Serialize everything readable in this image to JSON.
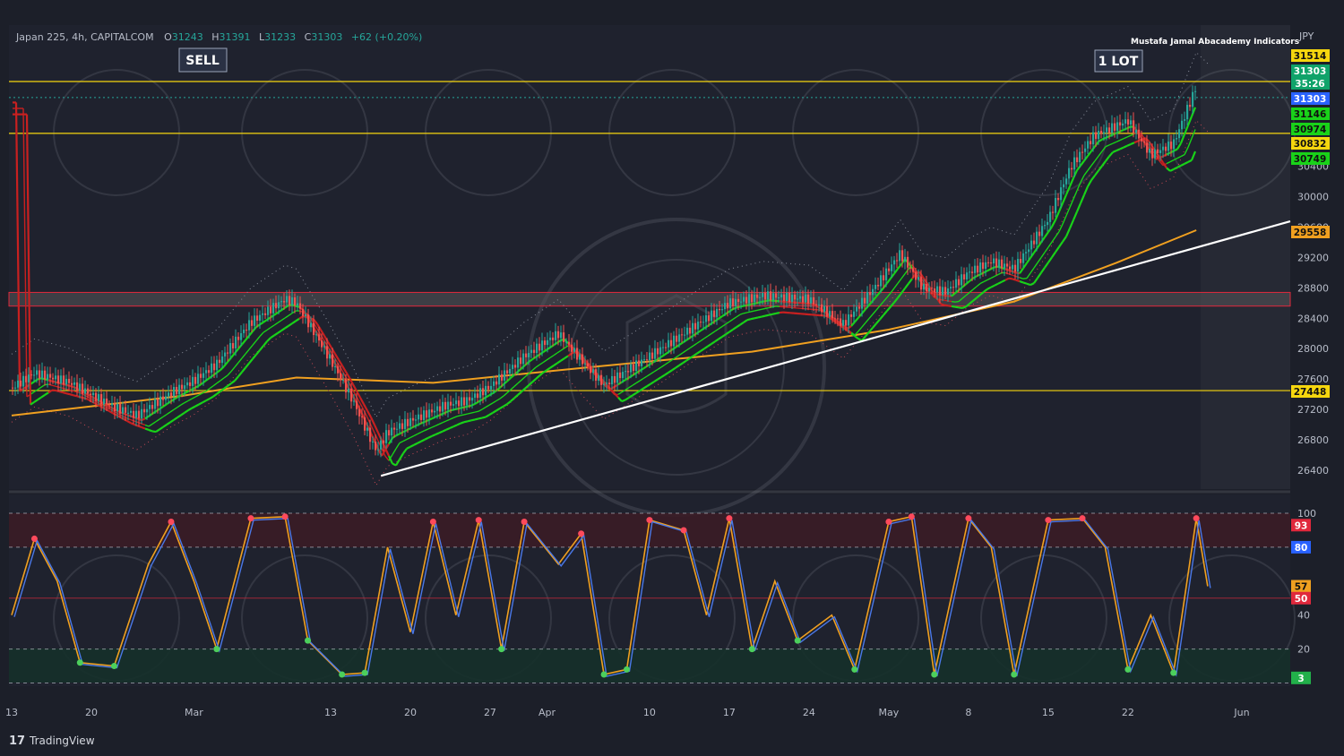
{
  "header": {
    "symbol": "Japan 225, 4h, CAPITALCOM",
    "open_label": "O",
    "open": "31243",
    "high_label": "H",
    "high": "31391",
    "low_label": "L",
    "low": "31233",
    "close_label": "C",
    "close": "31303",
    "change": "+62 (+0.20%)",
    "indicator_credit": "Mustafa Jamal Abacademy Indicators",
    "currency": "JPY"
  },
  "annotations": {
    "sell": "SELL",
    "lot": "1 LOT"
  },
  "price_axis": {
    "ticks": [
      "30000",
      "29600",
      "29200",
      "28800",
      "28400",
      "28000",
      "27600",
      "27200",
      "26800",
      "26400"
    ],
    "clipped_tick": "30400"
  },
  "price_badges": [
    {
      "text": "31514",
      "bg": "#f5d60e",
      "fg": "#111111"
    },
    {
      "text": "31303",
      "bg": "#10a36a",
      "fg": "#ffffff"
    },
    {
      "text": "35:26",
      "bg": "#10a36a",
      "fg": "#ffffff"
    },
    {
      "text": "31303",
      "bg": "#2962ff",
      "fg": "#ffffff"
    },
    {
      "text": "31146",
      "bg": "#19d219",
      "fg": "#111111"
    },
    {
      "text": "30974",
      "bg": "#19d219",
      "fg": "#111111"
    },
    {
      "text": "30832",
      "bg": "#f5d60e",
      "fg": "#111111"
    },
    {
      "text": "30749",
      "bg": "#19d219",
      "fg": "#111111"
    },
    {
      "text": "29558",
      "bg": "#f0a020",
      "fg": "#111111"
    },
    {
      "text": "27448",
      "bg": "#f5d60e",
      "fg": "#111111"
    }
  ],
  "osc_axis": {
    "ticks": [
      "100",
      "40",
      "20"
    ]
  },
  "osc_badges": [
    {
      "text": "93",
      "bg": "#e0283c",
      "fg": "#ffffff"
    },
    {
      "text": "80",
      "bg": "#2962ff",
      "fg": "#ffffff"
    },
    {
      "text": "57",
      "bg": "#f0a020",
      "fg": "#111111"
    },
    {
      "text": "50",
      "bg": "#e0283c",
      "fg": "#ffffff"
    },
    {
      "text": "3",
      "bg": "#22b04a",
      "fg": "#ffffff"
    }
  ],
  "time_axis": [
    "13",
    "20",
    "Mar",
    "13",
    "20",
    "27",
    "Apr",
    "10",
    "17",
    "24",
    "May",
    "8",
    "15",
    "22",
    "Jun"
  ],
  "brand": "TradingView",
  "colors": {
    "background": "#1c1f29",
    "bull": "#26a69a",
    "bear": "#ef5350",
    "level_line": "#f5d60e",
    "trendline": "#ffffff",
    "ma_long": "#f0a020",
    "ribbon_up": "#19d219",
    "ribbon_down": "#c82020",
    "zone_fill": "#55555a",
    "zone_border": "#e0283c"
  },
  "chart_data": {
    "type": "candlestick",
    "symbol": "Japan 225",
    "timeframe": "4h",
    "currency": "JPY",
    "last": {
      "open": 31243,
      "high": 31391,
      "low": 31233,
      "close": 31303
    },
    "horizontal_levels": [
      31514,
      30832,
      27448
    ],
    "zone": [
      28560,
      28740
    ],
    "trendline": [
      {
        "date": "Mar 19",
        "price": 26350
      },
      {
        "date": "Jun 2",
        "price": 29640
      }
    ],
    "ma_long": [
      {
        "date": "Feb 13",
        "price": 27120
      },
      {
        "date": "Feb 28",
        "price": 27380
      },
      {
        "date": "Mar 10",
        "price": 27620
      },
      {
        "date": "Mar 22",
        "price": 27550
      },
      {
        "date": "Apr 5",
        "price": 27760
      },
      {
        "date": "Apr 19",
        "price": 27960
      },
      {
        "date": "May 1",
        "price": 28250
      },
      {
        "date": "May 12",
        "price": 28620
      },
      {
        "date": "May 21",
        "price": 29130
      },
      {
        "date": "May 28",
        "price": 29558
      }
    ],
    "price_path": [
      {
        "date": "Feb 13",
        "price": 27480
      },
      {
        "date": "Feb 15",
        "price": 27680
      },
      {
        "date": "Feb 18",
        "price": 27560
      },
      {
        "date": "Feb 22",
        "price": 27230
      },
      {
        "date": "Feb 24",
        "price": 27120
      },
      {
        "date": "Feb 27",
        "price": 27420
      },
      {
        "date": "Mar 1",
        "price": 27580
      },
      {
        "date": "Mar 3",
        "price": 27800
      },
      {
        "date": "Mar 6",
        "price": 28350
      },
      {
        "date": "Mar 9",
        "price": 28650
      },
      {
        "date": "Mar 10",
        "price": 28600
      },
      {
        "date": "Mar 13",
        "price": 27850
      },
      {
        "date": "Mar 15",
        "price": 27300
      },
      {
        "date": "Mar 17",
        "price": 26650
      },
      {
        "date": "Mar 18",
        "price": 26900
      },
      {
        "date": "Mar 20",
        "price": 27050
      },
      {
        "date": "Mar 23",
        "price": 27250
      },
      {
        "date": "Mar 25",
        "price": 27320
      },
      {
        "date": "Mar 27",
        "price": 27500
      },
      {
        "date": "Mar 30",
        "price": 27900
      },
      {
        "date": "Apr 2",
        "price": 28200
      },
      {
        "date": "Apr 4",
        "price": 27850
      },
      {
        "date": "Apr 6",
        "price": 27520
      },
      {
        "date": "Apr 10",
        "price": 27900
      },
      {
        "date": "Apr 13",
        "price": 28200
      },
      {
        "date": "Apr 17",
        "price": 28600
      },
      {
        "date": "Apr 20",
        "price": 28700
      },
      {
        "date": "Apr 24",
        "price": 28650
      },
      {
        "date": "Apr 27",
        "price": 28320
      },
      {
        "date": "Apr 30",
        "price": 28850
      },
      {
        "date": "May 2",
        "price": 29250
      },
      {
        "date": "May 4",
        "price": 28800
      },
      {
        "date": "May 6",
        "price": 28750
      },
      {
        "date": "May 8",
        "price": 29000
      },
      {
        "date": "May 10",
        "price": 29150
      },
      {
        "date": "May 12",
        "price": 29050
      },
      {
        "date": "May 15",
        "price": 29700
      },
      {
        "date": "May 17",
        "price": 30400
      },
      {
        "date": "May 19",
        "price": 30800
      },
      {
        "date": "May 22",
        "price": 31000
      },
      {
        "date": "May 24",
        "price": 30550
      },
      {
        "date": "May 26",
        "price": 30700
      },
      {
        "date": "May 28",
        "price": 31450
      },
      {
        "date": "May 29",
        "price": 31303
      }
    ],
    "oscillator": {
      "range": [
        0,
        100
      ],
      "levels": [
        100,
        80,
        50,
        20,
        0
      ],
      "last_values": {
        "k": 93,
        "d": 80,
        "signal": 57,
        "mid": 50,
        "min": 3
      },
      "path": [
        {
          "date": "Feb 13",
          "v": 40
        },
        {
          "date": "Feb 15",
          "v": 85
        },
        {
          "date": "Feb 17",
          "v": 60
        },
        {
          "date": "Feb 19",
          "v": 12
        },
        {
          "date": "Feb 22",
          "v": 10
        },
        {
          "date": "Feb 25",
          "v": 70
        },
        {
          "date": "Feb 27",
          "v": 95
        },
        {
          "date": "Mar 1",
          "v": 60
        },
        {
          "date": "Mar 3",
          "v": 20
        },
        {
          "date": "Mar 6",
          "v": 97
        },
        {
          "date": "Mar 9",
          "v": 98
        },
        {
          "date": "Mar 11",
          "v": 25
        },
        {
          "date": "Mar 14",
          "v": 5
        },
        {
          "date": "Mar 16",
          "v": 6
        },
        {
          "date": "Mar 18",
          "v": 80
        },
        {
          "date": "Mar 20",
          "v": 30
        },
        {
          "date": "Mar 22",
          "v": 95
        },
        {
          "date": "Mar 24",
          "v": 40
        },
        {
          "date": "Mar 26",
          "v": 96
        },
        {
          "date": "Mar 28",
          "v": 20
        },
        {
          "date": "Mar 30",
          "v": 95
        },
        {
          "date": "Apr 2",
          "v": 70
        },
        {
          "date": "Apr 4",
          "v": 88
        },
        {
          "date": "Apr 6",
          "v": 5
        },
        {
          "date": "Apr 8",
          "v": 8
        },
        {
          "date": "Apr 10",
          "v": 96
        },
        {
          "date": "Apr 13",
          "v": 90
        },
        {
          "date": "Apr 15",
          "v": 40
        },
        {
          "date": "Apr 17",
          "v": 97
        },
        {
          "date": "Apr 19",
          "v": 20
        },
        {
          "date": "Apr 21",
          "v": 60
        },
        {
          "date": "Apr 23",
          "v": 25
        },
        {
          "date": "Apr 26",
          "v": 40
        },
        {
          "date": "Apr 28",
          "v": 8
        },
        {
          "date": "May 1",
          "v": 95
        },
        {
          "date": "May 3",
          "v": 98
        },
        {
          "date": "May 5",
          "v": 5
        },
        {
          "date": "May 8",
          "v": 97
        },
        {
          "date": "May 10",
          "v": 80
        },
        {
          "date": "May 12",
          "v": 5
        },
        {
          "date": "May 15",
          "v": 96
        },
        {
          "date": "May 18",
          "v": 97
        },
        {
          "date": "May 20",
          "v": 80
        },
        {
          "date": "May 22",
          "v": 8
        },
        {
          "date": "May 24",
          "v": 40
        },
        {
          "date": "May 26",
          "v": 6
        },
        {
          "date": "May 28",
          "v": 97
        },
        {
          "date": "May 29",
          "v": 57
        }
      ]
    }
  }
}
